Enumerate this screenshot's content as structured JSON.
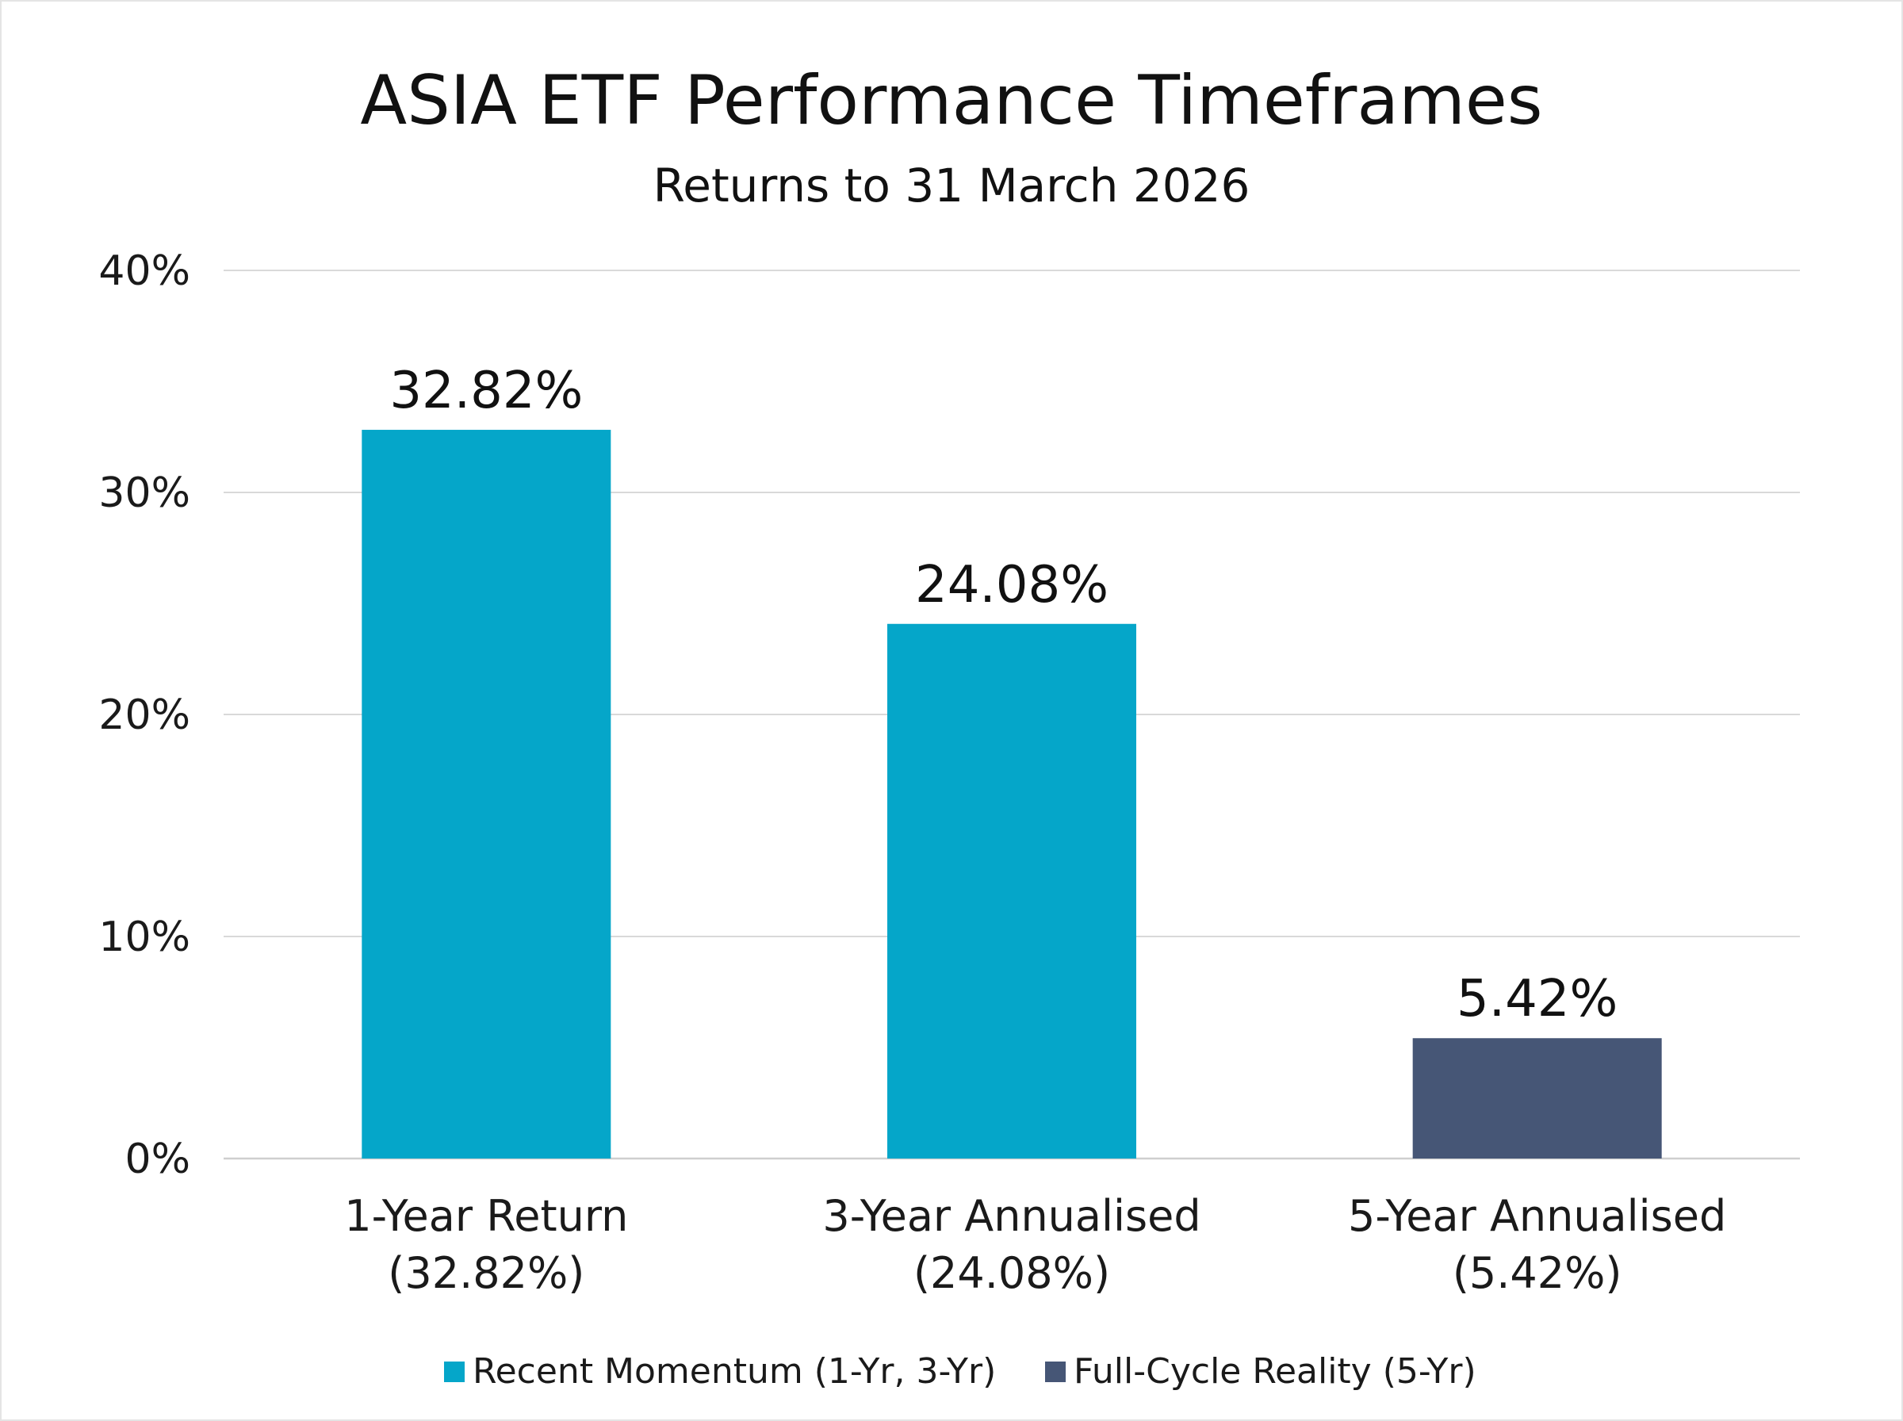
{
  "chart_data": {
    "type": "bar",
    "title": "ASIA ETF Performance Timeframes",
    "subtitle": "Returns to 31 March 2026",
    "categories": [
      [
        "1-Year Return",
        "(32.82%)"
      ],
      [
        "3-Year Annualised",
        "(24.08%)"
      ],
      [
        "5-Year Annualised",
        "(5.42%)"
      ]
    ],
    "values": [
      32.82,
      24.08,
      5.42
    ],
    "data_labels": [
      "32.82%",
      "24.08%",
      "5.42%"
    ],
    "bar_series": [
      0,
      0,
      1
    ],
    "series": [
      {
        "name": "Recent Momentum (1-Yr, 3-Yr)",
        "color": "#05a6c9"
      },
      {
        "name": "Full-Cycle Reality (5-Yr)",
        "color": "#465676"
      }
    ],
    "ylim": [
      0,
      40
    ],
    "yticks": [
      0,
      10,
      20,
      30,
      40
    ],
    "ytick_labels": [
      "0%",
      "10%",
      "20%",
      "30%",
      "40%"
    ],
    "grid": true,
    "legend_position": "bottom-center",
    "xlabel": "",
    "ylabel": ""
  }
}
